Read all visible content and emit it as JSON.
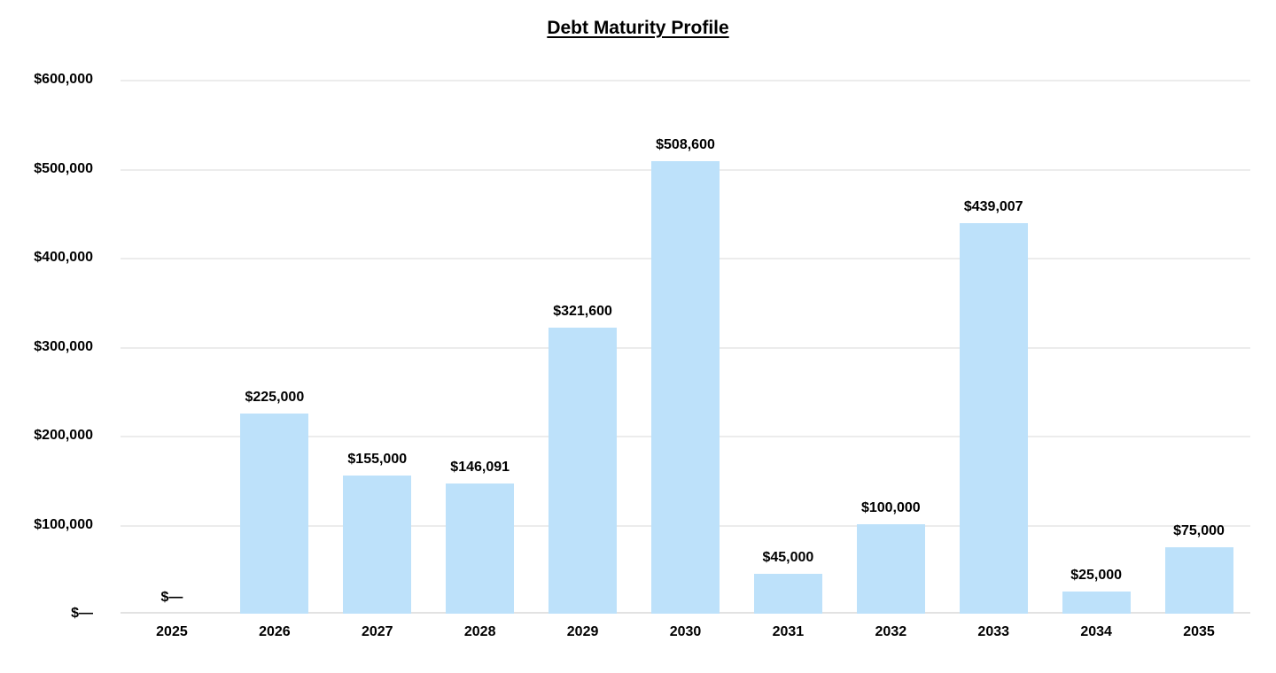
{
  "chart_data": {
    "type": "bar",
    "title": "Debt Maturity Profile",
    "categories": [
      "2025",
      "2026",
      "2027",
      "2028",
      "2029",
      "2030",
      "2031",
      "2032",
      "2033",
      "2034",
      "2035"
    ],
    "values": [
      0,
      225000,
      155000,
      146091,
      321600,
      508600,
      45000,
      100000,
      439007,
      25000,
      75000
    ],
    "value_labels": [
      "$—",
      "$225,000",
      "$155,000",
      "$146,091",
      "$321,600",
      "$508,600",
      "$45,000",
      "$100,000",
      "$439,007",
      "$25,000",
      "$75,000"
    ],
    "yticks": [
      600000,
      500000,
      400000,
      300000,
      200000,
      100000,
      0
    ],
    "ytick_labels": [
      "$600,000",
      "$500,000",
      "$400,000",
      "$300,000",
      "$200,000",
      "$100,000",
      "$—"
    ],
    "ylim": [
      0,
      600000
    ],
    "xlabel": "",
    "ylabel": "",
    "grid": true,
    "legend": false,
    "colors": {
      "bar_fill": "#BDE1FA",
      "gridline": "#ECECEC",
      "axis_line": "#E2E2E2",
      "text": "#000000",
      "background": "#FFFFFF"
    }
  }
}
